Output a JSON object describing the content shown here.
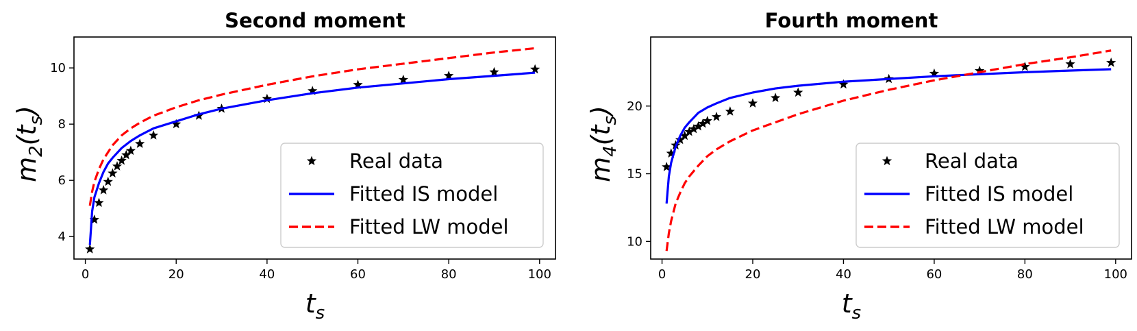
{
  "chart_data": [
    {
      "type": "line",
      "title": "Second moment",
      "xlabel": "t_s",
      "ylabel": "m_2(t_s)",
      "ylabel_base": "m",
      "ylabel_sub": "2",
      "ylabel_arg": "t",
      "ylabel_arg_sub": "s",
      "xlabel_base": "t",
      "xlabel_sub": "s",
      "xlim": [
        -2.5,
        103.5
      ],
      "ylim": [
        3.2,
        11.1
      ],
      "xticks": [
        0,
        20,
        40,
        60,
        80,
        100
      ],
      "yticks": [
        4,
        6,
        8,
        10
      ],
      "legend_position": "lower-right",
      "series": [
        {
          "name": "Real data",
          "style": "star-markers",
          "color": "#000000",
          "x": [
            1,
            2,
            3,
            4,
            5,
            6,
            7,
            8,
            9,
            10,
            12,
            15,
            20,
            25,
            30,
            40,
            50,
            60,
            70,
            80,
            90,
            99
          ],
          "y": [
            3.55,
            4.6,
            5.2,
            5.65,
            5.95,
            6.25,
            6.5,
            6.7,
            6.9,
            7.05,
            7.3,
            7.6,
            8.0,
            8.3,
            8.55,
            8.9,
            9.18,
            9.4,
            9.58,
            9.72,
            9.85,
            9.95
          ]
        },
        {
          "name": "Fitted IS model",
          "style": "solid",
          "color": "#0000ff",
          "x": [
            1,
            1.5,
            2,
            3,
            4,
            5,
            6,
            8,
            10,
            12,
            15,
            20,
            25,
            30,
            40,
            50,
            60,
            70,
            80,
            90,
            99
          ],
          "y": [
            3.7,
            4.9,
            5.4,
            5.9,
            6.3,
            6.6,
            6.8,
            7.15,
            7.4,
            7.6,
            7.85,
            8.1,
            8.35,
            8.55,
            8.85,
            9.1,
            9.3,
            9.45,
            9.6,
            9.72,
            9.83
          ]
        },
        {
          "name": "Fitted LW model",
          "style": "dashed",
          "color": "#ff0000",
          "x": [
            1,
            1.5,
            2,
            3,
            4,
            5,
            6,
            8,
            10,
            12,
            15,
            20,
            25,
            30,
            40,
            50,
            60,
            70,
            80,
            90,
            99
          ],
          "y": [
            5.1,
            5.6,
            5.95,
            6.4,
            6.75,
            7.0,
            7.25,
            7.6,
            7.85,
            8.05,
            8.3,
            8.6,
            8.85,
            9.05,
            9.4,
            9.7,
            9.95,
            10.15,
            10.35,
            10.55,
            10.7
          ]
        }
      ]
    },
    {
      "type": "line",
      "title": "Fourth moment",
      "xlabel": "t_s",
      "ylabel": "m_4(t_s)",
      "ylabel_base": "m",
      "ylabel_sub": "4",
      "ylabel_arg": "t",
      "ylabel_arg_sub": "s",
      "xlabel_base": "t",
      "xlabel_sub": "s",
      "xlim": [
        -2.5,
        103.5
      ],
      "ylim": [
        8.7,
        25.1
      ],
      "xticks": [
        0,
        20,
        40,
        60,
        80,
        100
      ],
      "yticks": [
        10,
        15,
        20
      ],
      "legend_position": "lower-right",
      "series": [
        {
          "name": "Real data",
          "style": "star-markers",
          "color": "#000000",
          "x": [
            1,
            2,
            3,
            4,
            5,
            6,
            7,
            8,
            9,
            10,
            12,
            15,
            20,
            25,
            30,
            40,
            50,
            60,
            70,
            80,
            90,
            99
          ],
          "y": [
            15.5,
            16.5,
            17.1,
            17.5,
            17.8,
            18.1,
            18.3,
            18.5,
            18.7,
            18.9,
            19.2,
            19.6,
            20.2,
            20.6,
            21.0,
            21.6,
            22.0,
            22.4,
            22.6,
            22.9,
            23.1,
            23.2
          ]
        },
        {
          "name": "Fitted IS model",
          "style": "solid",
          "color": "#0000ff",
          "x": [
            1,
            1.5,
            2,
            3,
            4,
            5,
            6,
            8,
            10,
            12,
            15,
            20,
            25,
            30,
            40,
            50,
            60,
            70,
            80,
            90,
            99
          ],
          "y": [
            12.8,
            14.8,
            15.8,
            17.0,
            17.8,
            18.4,
            18.8,
            19.5,
            19.9,
            20.2,
            20.6,
            21.0,
            21.3,
            21.5,
            21.8,
            22.0,
            22.2,
            22.35,
            22.5,
            22.62,
            22.72
          ]
        },
        {
          "name": "Fitted LW model",
          "style": "dashed",
          "color": "#ff0000",
          "x": [
            1,
            1.5,
            2,
            3,
            4,
            5,
            6,
            8,
            10,
            12,
            15,
            20,
            25,
            30,
            40,
            50,
            60,
            70,
            80,
            90,
            99
          ],
          "y": [
            9.3,
            10.6,
            11.5,
            12.8,
            13.6,
            14.3,
            14.8,
            15.6,
            16.3,
            16.8,
            17.4,
            18.2,
            18.8,
            19.4,
            20.4,
            21.2,
            21.9,
            22.5,
            23.1,
            23.6,
            24.1
          ]
        }
      ]
    }
  ]
}
